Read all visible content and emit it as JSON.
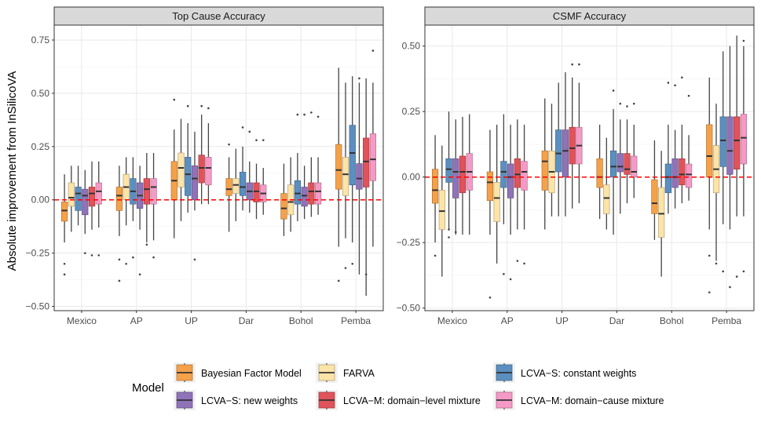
{
  "ylabel": "Absolute improvement from InSilicoVA",
  "legend": {
    "title": "Model",
    "placement": "bottom",
    "entries": [
      {
        "name": "Bayesian Factor Model",
        "color": "#F5A14A"
      },
      {
        "name": "FARVA",
        "color": "#FCE4A8"
      },
      {
        "name": "LCVA−S: constant weights",
        "color": "#5B8FC0"
      },
      {
        "name": "LCVA−S: new weights",
        "color": "#8F73B8"
      },
      {
        "name": "LCVA−M: domain−level mixture",
        "color": "#E0535A"
      },
      {
        "name": "LCVA−M: domain−cause mixture",
        "color": "#F59AC6"
      }
    ]
  },
  "chart_data": [
    {
      "type": "boxplot",
      "title": "Top Cause Accuracy",
      "ylabel": "Absolute improvement from InSilicoVA",
      "ylim": [
        -0.52,
        0.82
      ],
      "yticks": [
        -0.5,
        -0.25,
        0.0,
        0.25,
        0.5,
        0.75
      ],
      "ytick_labels": [
        "−0.50",
        "−0.25",
        "0.00",
        "0.25",
        "0.50",
        "0.75"
      ],
      "reference_line": 0,
      "categories": [
        "Mexico",
        "AP",
        "UP",
        "Dar",
        "Bohol",
        "Pemba"
      ],
      "series": [
        {
          "name": "Bayesian Factor Model",
          "boxes": [
            {
              "min": -0.2,
              "q1": -0.1,
              "median": -0.05,
              "q3": -0.01,
              "max": 0.12,
              "outliers": [
                -0.3,
                -0.35
              ]
            },
            {
              "min": -0.17,
              "q1": -0.05,
              "median": 0.02,
              "q3": 0.06,
              "max": 0.16,
              "outliers": [
                -0.28,
                -0.38
              ]
            },
            {
              "min": -0.18,
              "q1": 0.0,
              "median": 0.09,
              "q3": 0.18,
              "max": 0.33,
              "outliers": [
                0.47
              ]
            },
            {
              "min": -0.15,
              "q1": 0.02,
              "median": 0.05,
              "q3": 0.1,
              "max": 0.2,
              "outliers": [
                0.26
              ]
            },
            {
              "min": -0.17,
              "q1": -0.09,
              "median": -0.04,
              "q3": 0.03,
              "max": 0.17,
              "outliers": []
            },
            {
              "min": -0.22,
              "q1": 0.05,
              "median": 0.14,
              "q3": 0.26,
              "max": 0.62,
              "outliers": [
                -0.38
              ]
            }
          ]
        },
        {
          "name": "FARVA",
          "boxes": [
            {
              "min": -0.15,
              "q1": -0.03,
              "median": 0.01,
              "q3": 0.08,
              "max": 0.16,
              "outliers": []
            },
            {
              "min": -0.12,
              "q1": 0.0,
              "median": 0.06,
              "q3": 0.12,
              "max": 0.2,
              "outliers": [
                -0.3
              ]
            },
            {
              "min": -0.1,
              "q1": 0.06,
              "median": 0.15,
              "q3": 0.22,
              "max": 0.38,
              "outliers": []
            },
            {
              "min": -0.1,
              "q1": 0.03,
              "median": 0.07,
              "q3": 0.1,
              "max": 0.24,
              "outliers": []
            },
            {
              "min": -0.15,
              "q1": -0.07,
              "median": -0.01,
              "q3": 0.07,
              "max": 0.2,
              "outliers": []
            },
            {
              "min": -0.18,
              "q1": 0.02,
              "median": 0.12,
              "q3": 0.2,
              "max": 0.55,
              "outliers": [
                -0.32
              ]
            }
          ]
        },
        {
          "name": "LCVA−S: constant weights",
          "boxes": [
            {
              "min": -0.12,
              "q1": -0.05,
              "median": 0.03,
              "q3": 0.06,
              "max": 0.16,
              "outliers": []
            },
            {
              "min": -0.1,
              "q1": -0.02,
              "median": 0.04,
              "q3": 0.1,
              "max": 0.2,
              "outliers": [
                -0.27
              ]
            },
            {
              "min": -0.06,
              "q1": 0.02,
              "median": 0.12,
              "q3": 0.2,
              "max": 0.36,
              "outliers": [
                0.44
              ]
            },
            {
              "min": -0.05,
              "q1": 0.02,
              "median": 0.06,
              "q3": 0.13,
              "max": 0.25,
              "outliers": [
                0.34
              ]
            },
            {
              "min": -0.1,
              "q1": -0.02,
              "median": 0.03,
              "q3": 0.09,
              "max": 0.22,
              "outliers": [
                0.4
              ]
            },
            {
              "min": -0.2,
              "q1": 0.07,
              "median": 0.22,
              "q3": 0.35,
              "max": 0.58,
              "outliers": [
                -0.3
              ]
            }
          ]
        },
        {
          "name": "LCVA−S: new weights",
          "boxes": [
            {
              "min": -0.16,
              "q1": -0.07,
              "median": 0.02,
              "q3": 0.05,
              "max": 0.14,
              "outliers": [
                -0.25
              ]
            },
            {
              "min": -0.14,
              "q1": -0.04,
              "median": 0.02,
              "q3": 0.08,
              "max": 0.16,
              "outliers": [
                -0.35
              ]
            },
            {
              "min": -0.05,
              "q1": 0.0,
              "median": 0.1,
              "q3": 0.16,
              "max": 0.32,
              "outliers": [
                -0.28
              ]
            },
            {
              "min": -0.06,
              "q1": 0.0,
              "median": 0.04,
              "q3": 0.08,
              "max": 0.18,
              "outliers": [
                0.32
              ]
            },
            {
              "min": -0.09,
              "q1": -0.03,
              "median": 0.02,
              "q3": 0.06,
              "max": 0.16,
              "outliers": [
                0.4
              ]
            },
            {
              "min": -0.35,
              "q1": 0.05,
              "median": 0.1,
              "q3": 0.17,
              "max": 0.55,
              "outliers": [
                0.57
              ]
            }
          ]
        },
        {
          "name": "LCVA−M: domain−level mixture",
          "boxes": [
            {
              "min": -0.14,
              "q1": -0.03,
              "median": 0.03,
              "q3": 0.06,
              "max": 0.18,
              "outliers": [
                -0.26
              ]
            },
            {
              "min": -0.2,
              "q1": -0.02,
              "median": 0.05,
              "q3": 0.1,
              "max": 0.22,
              "outliers": [
                -0.21
              ]
            },
            {
              "min": -0.02,
              "q1": 0.08,
              "median": 0.15,
              "q3": 0.21,
              "max": 0.4,
              "outliers": [
                0.44
              ]
            },
            {
              "min": -0.09,
              "q1": -0.01,
              "median": 0.04,
              "q3": 0.08,
              "max": 0.17,
              "outliers": [
                0.28
              ]
            },
            {
              "min": -0.08,
              "q1": -0.02,
              "median": 0.04,
              "q3": 0.08,
              "max": 0.2,
              "outliers": [
                0.41
              ]
            },
            {
              "min": -0.45,
              "q1": 0.06,
              "median": 0.18,
              "q3": 0.29,
              "max": 0.57,
              "outliers": [
                -0.35
              ]
            }
          ]
        },
        {
          "name": "LCVA−M: domain−cause mixture",
          "boxes": [
            {
              "min": -0.13,
              "q1": -0.02,
              "median": 0.04,
              "q3": 0.08,
              "max": 0.18,
              "outliers": [
                -0.26
              ]
            },
            {
              "min": -0.19,
              "q1": -0.02,
              "median": 0.06,
              "q3": 0.1,
              "max": 0.22,
              "outliers": [
                -0.27
              ]
            },
            {
              "min": -0.02,
              "q1": 0.07,
              "median": 0.15,
              "q3": 0.2,
              "max": 0.36,
              "outliers": [
                0.43
              ]
            },
            {
              "min": -0.07,
              "q1": -0.01,
              "median": 0.03,
              "q3": 0.07,
              "max": 0.15,
              "outliers": [
                0.28
              ]
            },
            {
              "min": -0.07,
              "q1": -0.02,
              "median": 0.04,
              "q3": 0.08,
              "max": 0.2,
              "outliers": [
                0.39
              ]
            },
            {
              "min": -0.22,
              "q1": 0.09,
              "median": 0.19,
              "q3": 0.31,
              "max": 0.55,
              "outliers": [
                0.7
              ]
            }
          ]
        }
      ]
    },
    {
      "type": "boxplot",
      "title": "CSMF Accuracy",
      "ylabel": "",
      "ylim": [
        -0.51,
        0.58
      ],
      "yticks": [
        -0.5,
        -0.25,
        0.0,
        0.25,
        0.5
      ],
      "ytick_labels": [
        "−0.50",
        "−0.25",
        "0.00",
        "0.25",
        "0.50"
      ],
      "reference_line": 0,
      "categories": [
        "Mexico",
        "AP",
        "UP",
        "Dar",
        "Bohol",
        "Pemba"
      ],
      "series": [
        {
          "name": "Bayesian Factor Model",
          "boxes": [
            {
              "min": -0.25,
              "q1": -0.1,
              "median": -0.05,
              "q3": 0.03,
              "max": 0.16,
              "outliers": [
                -0.3
              ]
            },
            {
              "min": -0.22,
              "q1": -0.09,
              "median": -0.02,
              "q3": 0.02,
              "max": 0.18,
              "outliers": [
                -0.46
              ]
            },
            {
              "min": -0.2,
              "q1": -0.05,
              "median": 0.06,
              "q3": 0.1,
              "max": 0.3,
              "outliers": []
            },
            {
              "min": -0.16,
              "q1": -0.04,
              "median": 0.0,
              "q3": 0.07,
              "max": 0.2,
              "outliers": []
            },
            {
              "min": -0.24,
              "q1": -0.14,
              "median": -0.1,
              "q3": -0.01,
              "max": 0.14,
              "outliers": []
            },
            {
              "min": -0.2,
              "q1": 0.0,
              "median": 0.08,
              "q3": 0.2,
              "max": 0.38,
              "outliers": [
                -0.3,
                -0.44
              ]
            }
          ]
        },
        {
          "name": "FARVA",
          "boxes": [
            {
              "min": -0.38,
              "q1": -0.2,
              "median": -0.13,
              "q3": -0.05,
              "max": 0.12,
              "outliers": []
            },
            {
              "min": -0.33,
              "q1": -0.17,
              "median": -0.08,
              "q3": -0.02,
              "max": 0.2,
              "outliers": []
            },
            {
              "min": -0.15,
              "q1": -0.06,
              "median": 0.02,
              "q3": 0.1,
              "max": 0.28,
              "outliers": []
            },
            {
              "min": -0.2,
              "q1": -0.14,
              "median": -0.08,
              "q3": -0.03,
              "max": 0.15,
              "outliers": []
            },
            {
              "min": -0.38,
              "q1": -0.23,
              "median": -0.14,
              "q3": -0.04,
              "max": 0.1,
              "outliers": []
            },
            {
              "min": -0.32,
              "q1": -0.06,
              "median": 0.03,
              "q3": 0.12,
              "max": 0.28,
              "outliers": [
                -0.33
              ]
            }
          ]
        },
        {
          "name": "LCVA−S: constant weights",
          "boxes": [
            {
              "min": -0.2,
              "q1": -0.02,
              "median": 0.03,
              "q3": 0.07,
              "max": 0.25,
              "outliers": [
                -0.23,
                -0.2
              ]
            },
            {
              "min": -0.18,
              "q1": -0.04,
              "median": 0.02,
              "q3": 0.06,
              "max": 0.24,
              "outliers": [
                -0.37
              ]
            },
            {
              "min": -0.15,
              "q1": 0.02,
              "median": 0.09,
              "q3": 0.18,
              "max": 0.36,
              "outliers": []
            },
            {
              "min": -0.22,
              "q1": 0.0,
              "median": 0.04,
              "q3": 0.1,
              "max": 0.26,
              "outliers": [
                0.33
              ]
            },
            {
              "min": -0.14,
              "q1": -0.06,
              "median": 0.0,
              "q3": 0.05,
              "max": 0.2,
              "outliers": [
                0.36
              ]
            },
            {
              "min": -0.18,
              "q1": 0.04,
              "median": 0.14,
              "q3": 0.23,
              "max": 0.48,
              "outliers": [
                -0.36
              ]
            }
          ]
        },
        {
          "name": "LCVA−S: new weights",
          "boxes": [
            {
              "min": -0.22,
              "q1": -0.08,
              "median": 0.02,
              "q3": 0.07,
              "max": 0.22,
              "outliers": [
                -0.21
              ]
            },
            {
              "min": -0.22,
              "q1": -0.08,
              "median": 0.0,
              "q3": 0.05,
              "max": 0.2,
              "outliers": [
                -0.39
              ]
            },
            {
              "min": -0.15,
              "q1": 0.0,
              "median": 0.1,
              "q3": 0.18,
              "max": 0.4,
              "outliers": []
            },
            {
              "min": -0.14,
              "q1": 0.02,
              "median": 0.04,
              "q3": 0.09,
              "max": 0.22,
              "outliers": [
                0.28
              ]
            },
            {
              "min": -0.12,
              "q1": -0.04,
              "median": 0.0,
              "q3": 0.07,
              "max": 0.18,
              "outliers": [
                0.35
              ]
            },
            {
              "min": -0.2,
              "q1": 0.01,
              "median": 0.1,
              "q3": 0.23,
              "max": 0.5,
              "outliers": [
                -0.42
              ]
            }
          ]
        },
        {
          "name": "LCVA−M: domain−level mixture",
          "boxes": [
            {
              "min": -0.22,
              "q1": -0.06,
              "median": 0.02,
              "q3": 0.08,
              "max": 0.23,
              "outliers": []
            },
            {
              "min": -0.2,
              "q1": -0.04,
              "median": 0.01,
              "q3": 0.07,
              "max": 0.22,
              "outliers": [
                -0.32
              ]
            },
            {
              "min": -0.12,
              "q1": 0.05,
              "median": 0.11,
              "q3": 0.19,
              "max": 0.38,
              "outliers": [
                0.43
              ]
            },
            {
              "min": -0.1,
              "q1": 0.01,
              "median": 0.03,
              "q3": 0.09,
              "max": 0.22,
              "outliers": [
                0.27
              ]
            },
            {
              "min": -0.1,
              "q1": -0.03,
              "median": 0.01,
              "q3": 0.07,
              "max": 0.2,
              "outliers": [
                0.38
              ]
            },
            {
              "min": -0.15,
              "q1": 0.03,
              "median": 0.14,
              "q3": 0.23,
              "max": 0.54,
              "outliers": [
                -0.38
              ]
            }
          ]
        },
        {
          "name": "LCVA−M: domain−cause mixture",
          "boxes": [
            {
              "min": -0.22,
              "q1": -0.05,
              "median": 0.02,
              "q3": 0.09,
              "max": 0.24,
              "outliers": []
            },
            {
              "min": -0.2,
              "q1": -0.05,
              "median": 0.02,
              "q3": 0.06,
              "max": 0.2,
              "outliers": [
                -0.33
              ]
            },
            {
              "min": -0.1,
              "q1": 0.05,
              "median": 0.12,
              "q3": 0.19,
              "max": 0.36,
              "outliers": [
                0.43
              ]
            },
            {
              "min": -0.08,
              "q1": 0.0,
              "median": 0.02,
              "q3": 0.08,
              "max": 0.2,
              "outliers": [
                0.28
              ]
            },
            {
              "min": -0.09,
              "q1": -0.04,
              "median": 0.01,
              "q3": 0.05,
              "max": 0.16,
              "outliers": [
                0.31
              ]
            },
            {
              "min": -0.15,
              "q1": 0.05,
              "median": 0.15,
              "q3": 0.24,
              "max": 0.5,
              "outliers": [
                -0.36,
                0.52
              ]
            }
          ]
        }
      ]
    }
  ]
}
